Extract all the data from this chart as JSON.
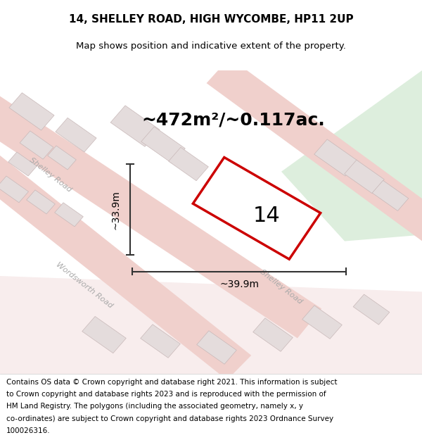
{
  "title": "14, SHELLEY ROAD, HIGH WYCOMBE, HP11 2UP",
  "subtitle": "Map shows position and indicative extent of the property.",
  "area_text": "~472m²/~0.117ac.",
  "label_number": "14",
  "dim_width": "~39.9m",
  "dim_height": "~33.9m",
  "footer_lines": [
    "Contains OS data © Crown copyright and database right 2021. This information is subject",
    "to Crown copyright and database rights 2023 and is reproduced with the permission of",
    "HM Land Registry. The polygons (including the associated geometry, namely x, y",
    "co-ordinates) are subject to Crown copyright and database rights 2023 Ordnance Survey",
    "100026316."
  ],
  "map_bg": "#f2eeee",
  "road_color": "#f0d0cc",
  "road_light": "#f8eded",
  "building_color": "#e4dcdc",
  "building_edge": "#c8b8b8",
  "green_color": "#ddeedd",
  "plot_outline_color": "#cc0000",
  "dim_line_color": "#333333",
  "road_label_color": "#aaaaaa",
  "title_fontsize": 11,
  "subtitle_fontsize": 9.5,
  "area_fontsize": 18,
  "label_fontsize": 22,
  "dim_fontsize": 10,
  "footer_fontsize": 7.5
}
